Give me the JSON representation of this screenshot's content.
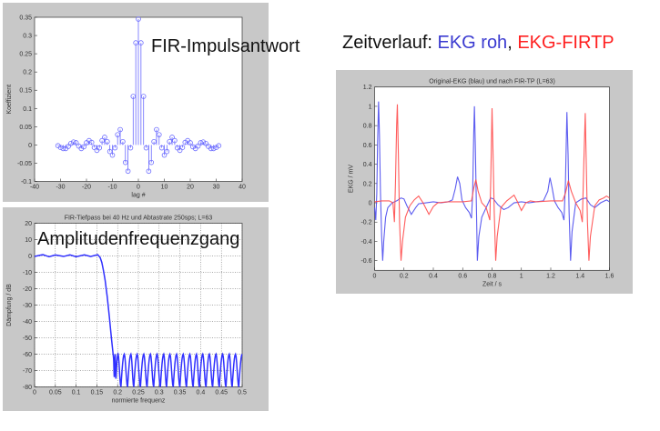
{
  "slide": {
    "impulse_heading": "FIR-Impulsantwort",
    "freq_heading": "Amplitudenfrequenzgang",
    "time_heading_prefix": "Zeitverlauf: ",
    "time_heading_blue": "EKG roh",
    "time_heading_sep": ", ",
    "time_heading_red": "EKG-FIRTP"
  },
  "colors": {
    "panel_bg": "#c8c8c8",
    "blue": "#4a4aee",
    "red": "#ff4a4a",
    "heading_blue": "#3a3ad0",
    "heading_red": "#ff2020"
  },
  "chart_data": [
    {
      "type": "stem",
      "title": "",
      "xlabel": "lag #",
      "ylabel": "Koeffizient",
      "xlim": [
        -40,
        40
      ],
      "ylim": [
        -0.1,
        0.35
      ],
      "xticks": [
        -40,
        -30,
        -20,
        -10,
        0,
        10,
        20,
        30,
        40
      ],
      "yticks": [
        -0.1,
        -0.05,
        0,
        0.05,
        0.1,
        0.15,
        0.2,
        0.25,
        0.3,
        0.35
      ],
      "grid": false,
      "x": [
        -31,
        -30,
        -29,
        -28,
        -27,
        -26,
        -25,
        -24,
        -23,
        -22,
        -21,
        -20,
        -19,
        -18,
        -17,
        -16,
        -15,
        -14,
        -13,
        -12,
        -11,
        -10,
        -9,
        -8,
        -7,
        -6,
        -5,
        -4,
        -3,
        -2,
        -1,
        0,
        1,
        2,
        3,
        4,
        5,
        6,
        7,
        8,
        9,
        10,
        11,
        12,
        13,
        14,
        15,
        16,
        17,
        18,
        19,
        20,
        21,
        22,
        23,
        24,
        25,
        26,
        27,
        28,
        29,
        30,
        31
      ],
      "values": [
        -0.002,
        -0.007,
        -0.01,
        -0.01,
        -0.004,
        0.004,
        0.008,
        0.006,
        -0.003,
        -0.01,
        -0.005,
        0.006,
        0.012,
        0.007,
        -0.007,
        -0.015,
        -0.008,
        0.012,
        0.021,
        0.009,
        -0.018,
        -0.028,
        -0.008,
        0.028,
        0.042,
        0.009,
        -0.048,
        -0.072,
        -0.008,
        0.133,
        0.28,
        0.345,
        0.28,
        0.133,
        -0.008,
        -0.072,
        -0.048,
        0.009,
        0.042,
        0.028,
        -0.008,
        -0.028,
        -0.018,
        0.009,
        0.021,
        0.012,
        -0.008,
        -0.015,
        -0.007,
        0.007,
        0.012,
        0.006,
        -0.005,
        -0.01,
        -0.003,
        0.006,
        0.008,
        0.004,
        -0.004,
        -0.01,
        -0.01,
        -0.007,
        -0.002
      ],
      "color": "#6a6aff"
    },
    {
      "type": "line",
      "title": "FIR-Tiefpass bei 40 Hz und Abtastrate 250sps; L=63",
      "xlabel": "normierte frequenz",
      "ylabel": "Dämpfung / dB",
      "xlim": [
        0,
        0.5
      ],
      "ylim": [
        -80,
        20
      ],
      "xticks": [
        0,
        0.05,
        0.1,
        0.15,
        0.2,
        0.25,
        0.3,
        0.35,
        0.4,
        0.45,
        0.5
      ],
      "yticks": [
        -80,
        -70,
        -60,
        -50,
        -40,
        -30,
        -20,
        -10,
        0,
        10,
        20
      ],
      "grid": true,
      "passband": [
        [
          0,
          -0.3
        ],
        [
          0.01,
          0.3
        ],
        [
          0.02,
          0.8
        ],
        [
          0.035,
          -0.5
        ],
        [
          0.05,
          0.6
        ],
        [
          0.07,
          -0.3
        ],
        [
          0.085,
          0.7
        ],
        [
          0.1,
          -0.5
        ],
        [
          0.12,
          0.7
        ],
        [
          0.135,
          -0.3
        ],
        [
          0.152,
          0.8
        ],
        [
          0.158,
          -1
        ],
        [
          0.162,
          -4
        ],
        [
          0.166,
          -9
        ],
        [
          0.17,
          -15
        ],
        [
          0.175,
          -25
        ],
        [
          0.18,
          -37
        ],
        [
          0.185,
          -50
        ],
        [
          0.19,
          -62
        ]
      ],
      "stopband_nulls": [
        [
          0.192,
          -74
        ],
        [
          0.196,
          -75
        ],
        [
          0.208,
          -80
        ],
        [
          0.224,
          -80
        ],
        [
          0.239,
          -80
        ],
        [
          0.255,
          -80
        ],
        [
          0.271,
          -80
        ],
        [
          0.287,
          -80
        ],
        [
          0.303,
          -80
        ],
        [
          0.318,
          -80
        ],
        [
          0.334,
          -80
        ],
        [
          0.35,
          -80
        ],
        [
          0.366,
          -80
        ],
        [
          0.382,
          -80
        ],
        [
          0.397,
          -80
        ],
        [
          0.413,
          -80
        ],
        [
          0.429,
          -80
        ],
        [
          0.445,
          -80
        ],
        [
          0.461,
          -80
        ],
        [
          0.476,
          -80
        ],
        [
          0.492,
          -80
        ]
      ],
      "stopband_peaks": [
        [
          0.194,
          -60
        ],
        [
          0.201,
          -60
        ],
        [
          0.216,
          -60
        ],
        [
          0.232,
          -60
        ],
        [
          0.247,
          -60
        ],
        [
          0.263,
          -60
        ],
        [
          0.279,
          -60
        ],
        [
          0.295,
          -60
        ],
        [
          0.311,
          -60
        ],
        [
          0.326,
          -60
        ],
        [
          0.342,
          -60
        ],
        [
          0.358,
          -60
        ],
        [
          0.374,
          -60
        ],
        [
          0.39,
          -60
        ],
        [
          0.405,
          -60
        ],
        [
          0.421,
          -60
        ],
        [
          0.437,
          -60
        ],
        [
          0.453,
          -60
        ],
        [
          0.469,
          -60
        ],
        [
          0.484,
          -60
        ],
        [
          0.5,
          -60
        ]
      ],
      "color": "#3030ff"
    },
    {
      "type": "line",
      "title": "Original-EKG (blau) und nach FIR-TP (L=63)",
      "xlabel": "Zeit / s",
      "ylabel": "EKG / mV",
      "xlim": [
        0,
        1.6
      ],
      "ylim": [
        -0.7,
        1.2
      ],
      "xticks": [
        0,
        0.2,
        0.4,
        0.6,
        0.8,
        1,
        1.2,
        1.4,
        1.6
      ],
      "yticks": [
        -0.6,
        -0.4,
        -0.2,
        0,
        0.2,
        0.4,
        0.6,
        0.8,
        1,
        1.2
      ],
      "grid": false,
      "series": [
        {
          "color": "#4a4aee",
          "points": [
            [
              0,
              -0.05
            ],
            [
              0.008,
              -0.18
            ],
            [
              0.015,
              0.1
            ],
            [
              0.02,
              0.6
            ],
            [
              0.027,
              1.05
            ],
            [
              0.033,
              0.7
            ],
            [
              0.04,
              0.1
            ],
            [
              0.048,
              -0.35
            ],
            [
              0.055,
              -0.6
            ],
            [
              0.062,
              -0.4
            ],
            [
              0.075,
              -0.15
            ],
            [
              0.09,
              -0.05
            ],
            [
              0.12,
              0.0
            ],
            [
              0.15,
              0.02
            ],
            [
              0.18,
              0.05
            ],
            [
              0.2,
              0.04
            ],
            [
              0.22,
              -0.03
            ],
            [
              0.25,
              -0.12
            ],
            [
              0.28,
              -0.05
            ],
            [
              0.3,
              -0.01
            ],
            [
              0.35,
              0.0
            ],
            [
              0.4,
              0.01
            ],
            [
              0.45,
              0.0
            ],
            [
              0.5,
              0.01
            ],
            [
              0.53,
              0.03
            ],
            [
              0.55,
              0.15
            ],
            [
              0.565,
              0.27
            ],
            [
              0.58,
              0.2
            ],
            [
              0.595,
              0.03
            ],
            [
              0.62,
              -0.05
            ],
            [
              0.645,
              -0.1
            ],
            [
              0.66,
              -0.16
            ],
            [
              0.668,
              0.1
            ],
            [
              0.675,
              0.7
            ],
            [
              0.68,
              1.0
            ],
            [
              0.686,
              0.6
            ],
            [
              0.693,
              0.0
            ],
            [
              0.7,
              -0.6
            ],
            [
              0.71,
              -0.35
            ],
            [
              0.73,
              -0.15
            ],
            [
              0.76,
              -0.05
            ],
            [
              0.79,
              0.05
            ],
            [
              0.81,
              0.04
            ],
            [
              0.84,
              -0.02
            ],
            [
              0.88,
              -0.07
            ],
            [
              0.91,
              -0.05
            ],
            [
              0.95,
              0.0
            ],
            [
              1.0,
              0.01
            ],
            [
              1.05,
              0.0
            ],
            [
              1.1,
              0.01
            ],
            [
              1.15,
              0.02
            ],
            [
              1.18,
              0.12
            ],
            [
              1.195,
              0.26
            ],
            [
              1.21,
              0.15
            ],
            [
              1.225,
              0.02
            ],
            [
              1.25,
              -0.05
            ],
            [
              1.275,
              -0.1
            ],
            [
              1.29,
              -0.18
            ],
            [
              1.3,
              0.2
            ],
            [
              1.31,
              0.94
            ],
            [
              1.318,
              0.5
            ],
            [
              1.325,
              -0.1
            ],
            [
              1.335,
              -0.6
            ],
            [
              1.345,
              -0.3
            ],
            [
              1.37,
              0.0
            ],
            [
              1.41,
              0.04
            ],
            [
              1.44,
              0.05
            ],
            [
              1.47,
              -0.02
            ],
            [
              1.5,
              -0.05
            ],
            [
              1.54,
              0.0
            ],
            [
              1.58,
              0.03
            ],
            [
              1.6,
              0.01
            ]
          ]
        },
        {
          "color": "#ff4a4a",
          "points": [
            [
              0,
              0.01
            ],
            [
              0.05,
              0.02
            ],
            [
              0.1,
              0.02
            ],
            [
              0.125,
              0.0
            ],
            [
              0.135,
              -0.2
            ],
            [
              0.142,
              0.2
            ],
            [
              0.15,
              0.8
            ],
            [
              0.155,
              1.02
            ],
            [
              0.162,
              0.5
            ],
            [
              0.17,
              -0.2
            ],
            [
              0.18,
              -0.6
            ],
            [
              0.19,
              -0.4
            ],
            [
              0.21,
              -0.15
            ],
            [
              0.24,
              -0.03
            ],
            [
              0.27,
              0.03
            ],
            [
              0.3,
              0.07
            ],
            [
              0.33,
              0.0
            ],
            [
              0.35,
              -0.06
            ],
            [
              0.37,
              -0.12
            ],
            [
              0.4,
              -0.04
            ],
            [
              0.43,
              0.0
            ],
            [
              0.5,
              0.01
            ],
            [
              0.6,
              0.01
            ],
            [
              0.66,
              0.02
            ],
            [
              0.675,
              0.15
            ],
            [
              0.69,
              0.24
            ],
            [
              0.705,
              0.12
            ],
            [
              0.73,
              0.0
            ],
            [
              0.76,
              -0.05
            ],
            [
              0.785,
              -0.18
            ],
            [
              0.792,
              0.3
            ],
            [
              0.8,
              0.98
            ],
            [
              0.807,
              0.5
            ],
            [
              0.815,
              -0.1
            ],
            [
              0.825,
              -0.6
            ],
            [
              0.835,
              -0.35
            ],
            [
              0.86,
              -0.05
            ],
            [
              0.9,
              0.02
            ],
            [
              0.95,
              0.08
            ],
            [
              0.97,
              0.02
            ],
            [
              1.0,
              -0.08
            ],
            [
              1.03,
              0.0
            ],
            [
              1.06,
              0.02
            ],
            [
              1.1,
              0.01
            ],
            [
              1.2,
              0.02
            ],
            [
              1.28,
              0.02
            ],
            [
              1.3,
              0.1
            ],
            [
              1.32,
              0.23
            ],
            [
              1.34,
              0.12
            ],
            [
              1.37,
              0.0
            ],
            [
              1.4,
              -0.08
            ],
            [
              1.415,
              -0.2
            ],
            [
              1.425,
              0.4
            ],
            [
              1.435,
              0.93
            ],
            [
              1.442,
              0.4
            ],
            [
              1.45,
              -0.2
            ],
            [
              1.46,
              -0.6
            ],
            [
              1.47,
              -0.35
            ],
            [
              1.5,
              -0.03
            ],
            [
              1.53,
              0.03
            ],
            [
              1.56,
              0.05
            ],
            [
              1.58,
              0.07
            ],
            [
              1.6,
              0.05
            ]
          ]
        }
      ]
    }
  ]
}
